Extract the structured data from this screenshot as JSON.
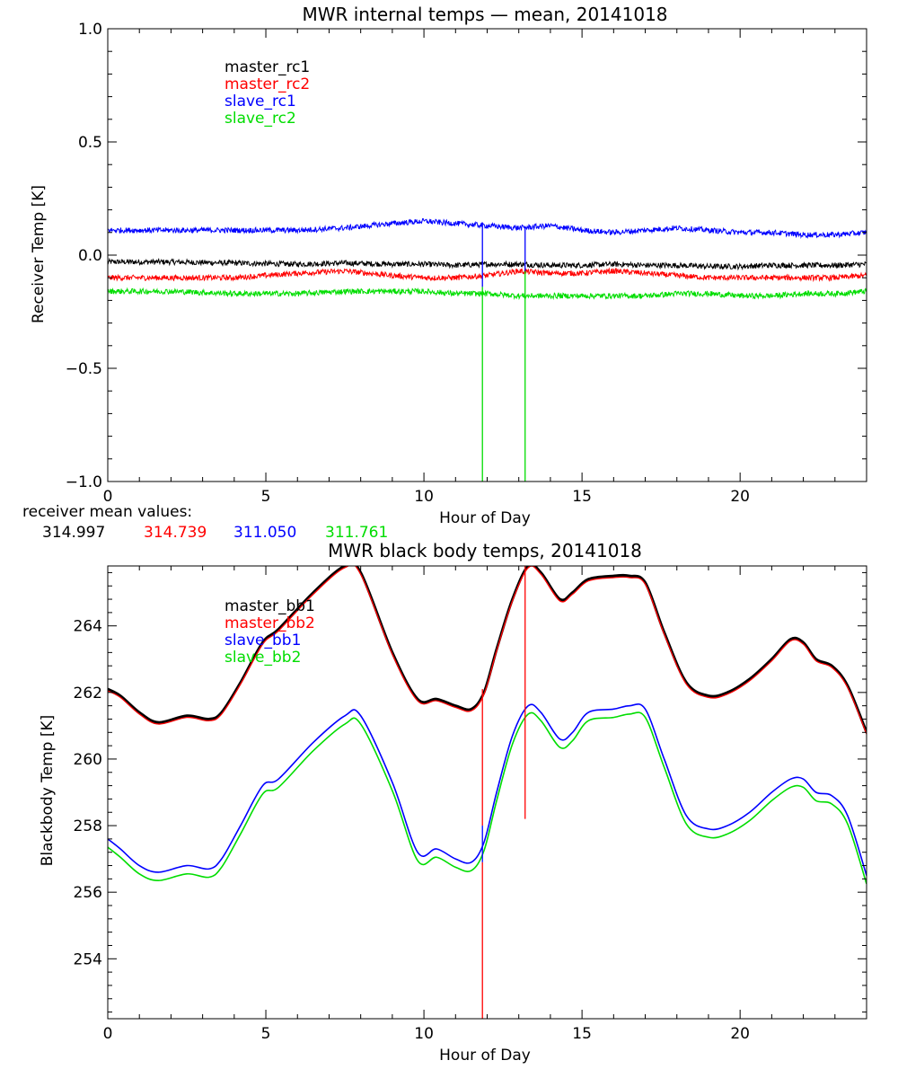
{
  "chart_data": [
    {
      "type": "line",
      "title": "MWR internal temps — mean, 20141018",
      "xlabel": "Hour of Day",
      "ylabel": "Receiver Temp [K]",
      "xlim": [
        0,
        24
      ],
      "ylim": [
        -1.0,
        1.0
      ],
      "x_ticks": [
        0,
        5,
        10,
        15,
        20
      ],
      "y_ticks": [
        -1.0,
        -0.5,
        0.0,
        0.5,
        1.0
      ],
      "y_tick_labels": [
        "−1.0",
        "−0.5",
        "0.0",
        "0.5",
        "1.0"
      ],
      "legend_position": "top-left",
      "noise": 0.012,
      "x": [
        0,
        2,
        4,
        6,
        7.5,
        9,
        10,
        11,
        12,
        13,
        14,
        15,
        16,
        17,
        18,
        19,
        20,
        21,
        22,
        23,
        24
      ],
      "series": [
        {
          "name": "master_rc1",
          "color": "#000000",
          "values": [
            -0.03,
            -0.03,
            -0.035,
            -0.04,
            -0.035,
            -0.04,
            -0.04,
            -0.045,
            -0.04,
            -0.04,
            -0.045,
            -0.045,
            -0.04,
            -0.045,
            -0.045,
            -0.05,
            -0.05,
            -0.045,
            -0.045,
            -0.045,
            -0.04
          ]
        },
        {
          "name": "master_rc2",
          "color": "#ff0000",
          "values": [
            -0.1,
            -0.1,
            -0.1,
            -0.08,
            -0.07,
            -0.09,
            -0.1,
            -0.1,
            -0.09,
            -0.07,
            -0.08,
            -0.08,
            -0.07,
            -0.08,
            -0.09,
            -0.1,
            -0.1,
            -0.1,
            -0.1,
            -0.1,
            -0.09
          ]
        },
        {
          "name": "slave_rc1",
          "color": "#0000ff",
          "values": [
            0.11,
            0.11,
            0.11,
            0.11,
            0.12,
            0.14,
            0.15,
            0.14,
            0.13,
            0.12,
            0.13,
            0.11,
            0.1,
            0.11,
            0.12,
            0.11,
            0.1,
            0.1,
            0.09,
            0.09,
            0.1
          ]
        },
        {
          "name": "slave_rc2",
          "color": "#00dd00",
          "values": [
            -0.16,
            -0.16,
            -0.17,
            -0.17,
            -0.16,
            -0.16,
            -0.16,
            -0.17,
            -0.17,
            -0.18,
            -0.18,
            -0.18,
            -0.18,
            -0.18,
            -0.17,
            -0.17,
            -0.18,
            -0.18,
            -0.17,
            -0.17,
            -0.16
          ]
        }
      ],
      "vertical_lines": [
        {
          "x": 11.85,
          "segments": [
            {
              "y0": -1.0,
              "y1": -0.14,
              "color": "#00dd00"
            },
            {
              "y0": -0.14,
              "y1": 0.14,
              "color": "#0000ff"
            }
          ]
        },
        {
          "x": 13.2,
          "segments": [
            {
              "y0": -1.0,
              "y1": -0.07,
              "color": "#00dd00"
            },
            {
              "y0": -0.07,
              "y1": 0.12,
              "color": "#0000ff"
            }
          ]
        }
      ]
    },
    {
      "type": "line",
      "title": "MWR black body temps, 20141018",
      "xlabel": "Hour of Day",
      "ylabel": "Blackbody Temp [K]",
      "xlim": [
        0,
        24
      ],
      "ylim": [
        252.2,
        265.8
      ],
      "x_ticks": [
        0,
        5,
        10,
        15,
        20
      ],
      "y_ticks": [
        254,
        256,
        258,
        260,
        262,
        264
      ],
      "legend_position": "top-left",
      "x": [
        0,
        0.4,
        1,
        1.6,
        2.5,
        3.2,
        3.6,
        4.2,
        4.9,
        5.4,
        6.5,
        7.5,
        8,
        9,
        9.8,
        10.4,
        11,
        11.5,
        11.9,
        12.3,
        12.8,
        13.3,
        13.7,
        14.3,
        14.7,
        15.2,
        16,
        16.5,
        17,
        17.6,
        18.3,
        19,
        19.6,
        20.3,
        21,
        21.6,
        22,
        22.4,
        22.9,
        23.4,
        24
      ],
      "series": [
        {
          "name": "master_bb1",
          "color": "#000000",
          "values": [
            262.1,
            261.9,
            261.4,
            261.1,
            261.3,
            261.2,
            261.4,
            262.3,
            263.5,
            263.9,
            265.0,
            265.8,
            265.6,
            263.2,
            261.8,
            261.8,
            261.6,
            261.5,
            262.0,
            263.3,
            264.8,
            265.8,
            265.6,
            264.8,
            265.0,
            265.4,
            265.5,
            265.5,
            265.3,
            263.8,
            262.3,
            261.9,
            262.0,
            262.4,
            263.0,
            263.6,
            263.5,
            263.0,
            262.8,
            262.2,
            260.8
          ]
        },
        {
          "name": "master_bb2",
          "color": "#ff0000",
          "values": [
            262.05,
            261.85,
            261.35,
            261.05,
            261.25,
            261.15,
            261.35,
            262.25,
            263.45,
            263.85,
            264.95,
            265.75,
            265.55,
            263.15,
            261.75,
            261.75,
            261.55,
            261.45,
            261.95,
            263.25,
            264.75,
            265.75,
            265.55,
            264.75,
            264.95,
            265.35,
            265.45,
            265.45,
            265.25,
            263.75,
            262.25,
            261.85,
            261.95,
            262.35,
            262.95,
            263.55,
            263.45,
            262.95,
            262.75,
            262.15,
            260.75
          ]
        },
        {
          "name": "slave_bb1",
          "color": "#0000ff",
          "values": [
            257.6,
            257.3,
            256.8,
            256.6,
            256.8,
            256.7,
            257.0,
            258.0,
            259.2,
            259.4,
            260.5,
            261.3,
            261.3,
            259.3,
            257.2,
            257.3,
            257.0,
            256.9,
            257.5,
            259.0,
            260.7,
            261.6,
            261.4,
            260.6,
            260.8,
            261.4,
            261.5,
            261.6,
            261.5,
            260.0,
            258.3,
            257.9,
            258.0,
            258.4,
            259.0,
            259.4,
            259.4,
            259.0,
            258.9,
            258.3,
            256.5
          ]
        },
        {
          "name": "slave_bb2",
          "color": "#00dd00",
          "values": [
            257.35,
            257.05,
            256.55,
            256.35,
            256.55,
            256.45,
            256.75,
            257.75,
            258.95,
            259.15,
            260.25,
            261.05,
            261.05,
            259.05,
            256.95,
            257.05,
            256.75,
            256.65,
            257.25,
            258.75,
            260.45,
            261.35,
            261.15,
            260.35,
            260.55,
            261.15,
            261.25,
            261.35,
            261.25,
            259.75,
            258.05,
            257.65,
            257.75,
            258.15,
            258.75,
            259.15,
            259.15,
            258.75,
            258.65,
            258.05,
            256.25
          ]
        }
      ],
      "vertical_lines": [
        {
          "x": 11.85,
          "segments": [
            {
              "y0": 252.2,
              "y1": 256.9,
              "color": "#ff0000"
            },
            {
              "y0": 256.9,
              "y1": 258.0,
              "color": "#0000ff"
            },
            {
              "y0": 258.0,
              "y1": 262.1,
              "color": "#ff0000"
            }
          ]
        },
        {
          "x": 13.2,
          "segments": [
            {
              "y0": 258.2,
              "y1": 265.8,
              "color": "#ff0000"
            }
          ]
        }
      ]
    }
  ],
  "receiver_means": {
    "label": "receiver mean values:",
    "values": [
      {
        "text": "314.997",
        "color": "#000000"
      },
      {
        "text": "314.739",
        "color": "#ff0000"
      },
      {
        "text": "311.050",
        "color": "#0000ff"
      },
      {
        "text": "311.761",
        "color": "#00dd00"
      }
    ]
  }
}
